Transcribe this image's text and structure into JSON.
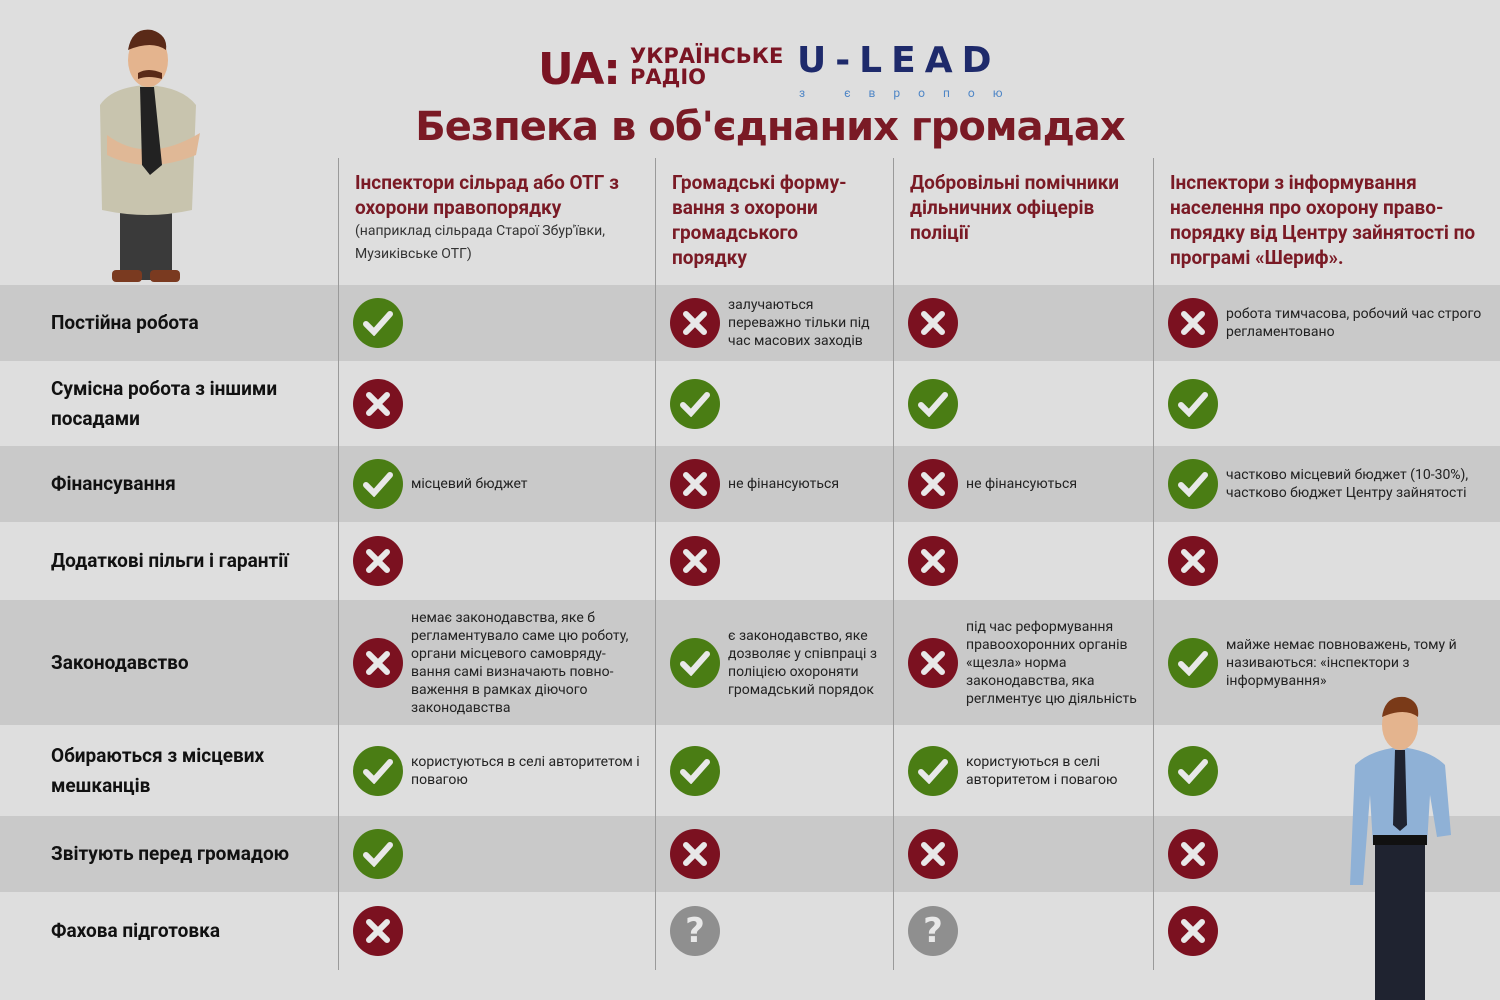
{
  "logos": {
    "ua": "UA:",
    "ua_text": [
      "УКРАЇНСЬКЕ",
      "РАДІО"
    ],
    "ulead": "U-LEAD",
    "ulead_sub": "з європою"
  },
  "title": "Безпека в об'єднаних громадах",
  "columns": [
    {
      "title": "Інспектори сільрад або ОТГ з охорони правопорядку",
      "note": "(наприклад сільрада Старої Збур'ївки, Музиківське ОТГ)"
    },
    {
      "title": "Громадські форму-вання з охорони громадського порядку"
    },
    {
      "title": "Добровільні помічники дільничних офіцерів поліції"
    },
    {
      "title": "Інспектори з інформування населення про охорону право-порядку від Центру зайнятості по програмі «Шериф»."
    }
  ],
  "rows": [
    {
      "label": "Постійна робота",
      "cells": [
        {
          "s": "yes"
        },
        {
          "s": "no",
          "t": "залучаються переважно тільки під час масових заходів"
        },
        {
          "s": "no"
        },
        {
          "s": "no",
          "t": "робота тимчасова, робочий час строго регламентовано"
        }
      ]
    },
    {
      "label": "Сумісна робота з іншими посадами",
      "cells": [
        {
          "s": "no"
        },
        {
          "s": "yes"
        },
        {
          "s": "yes"
        },
        {
          "s": "yes"
        }
      ]
    },
    {
      "label": "Фінансування",
      "cells": [
        {
          "s": "yes",
          "t": "місцевий бюджет"
        },
        {
          "s": "no",
          "t": "не фінансуються"
        },
        {
          "s": "no",
          "t": "не фінансуються"
        },
        {
          "s": "yes",
          "t": "частково місцевий бюджет (10-30%), частково бюджет Центру зайнятості"
        }
      ]
    },
    {
      "label": "Додаткові пільги і гарантії",
      "cells": [
        {
          "s": "no"
        },
        {
          "s": "no"
        },
        {
          "s": "no"
        },
        {
          "s": "no"
        }
      ]
    },
    {
      "label": "Законодавство",
      "cells": [
        {
          "s": "no",
          "t": "немає законодавства, яке б регламентувало саме цю роботу, органи місцевого самовряду-вання самі визначають повно-важення в рамках діючого законодавства"
        },
        {
          "s": "yes",
          "t": "є законодавство, яке дозволяє у співпраці з поліцією охороняти громадський порядок"
        },
        {
          "s": "no",
          "t": "під час реформування правоохоронних органів «щезла» норма законодавства, яка реглментує цю діяльність"
        },
        {
          "s": "yes",
          "t": "майже немає повноважень, тому й називаються: «інспектори з інформування»"
        }
      ]
    },
    {
      "label": "Обираються з місцевих мешканців",
      "cells": [
        {
          "s": "yes",
          "t": "користуються в селі авторитетом і повагою"
        },
        {
          "s": "yes"
        },
        {
          "s": "yes",
          "t": "користуються в селі авторитетом і повагою"
        },
        {
          "s": "yes"
        }
      ]
    },
    {
      "label": "Звітують перед громадою",
      "cells": [
        {
          "s": "yes"
        },
        {
          "s": "no"
        },
        {
          "s": "no"
        },
        {
          "s": "no"
        }
      ]
    },
    {
      "label": "Фахова підготовка",
      "cells": [
        {
          "s": "no"
        },
        {
          "s": "q"
        },
        {
          "s": "q"
        },
        {
          "s": "no"
        }
      ]
    }
  ],
  "colors": {
    "yes": "#4a7d14",
    "no": "#7b1120",
    "unknown": "#8f8f8f",
    "title": "#7a1a25"
  }
}
